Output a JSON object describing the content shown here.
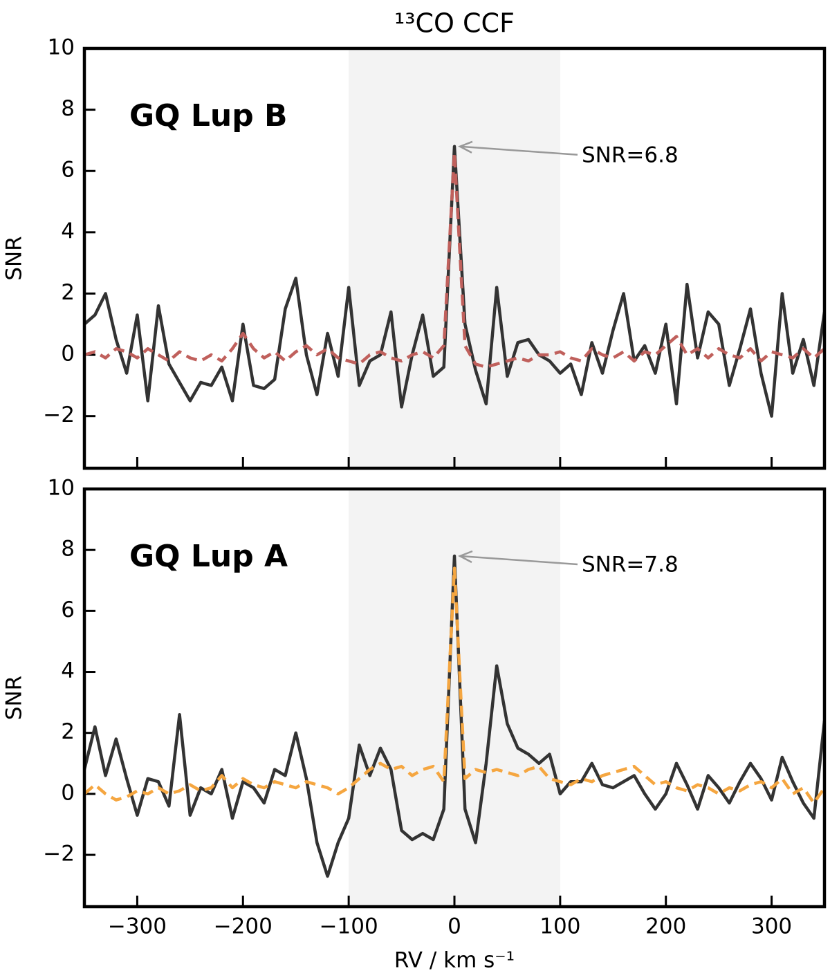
{
  "chart_data": [
    {
      "type": "line",
      "title": "¹³CO CCF",
      "label": "GQ Lup B",
      "annotation": "SNR=6.8",
      "ylabel": "SNR",
      "highlight_x": [
        -100,
        100
      ],
      "x": [
        -350,
        -340,
        -330,
        -320,
        -310,
        -300,
        -290,
        -280,
        -270,
        -260,
        -250,
        -240,
        -230,
        -220,
        -210,
        -200,
        -190,
        -180,
        -170,
        -160,
        -150,
        -140,
        -130,
        -120,
        -110,
        -100,
        -90,
        -80,
        -70,
        -60,
        -50,
        -40,
        -30,
        -20,
        -10,
        0,
        10,
        20,
        30,
        40,
        50,
        60,
        70,
        80,
        90,
        100,
        110,
        120,
        130,
        140,
        150,
        160,
        170,
        180,
        190,
        200,
        210,
        220,
        230,
        240,
        250,
        260,
        270,
        280,
        290,
        300,
        310,
        320,
        330,
        340,
        350
      ],
      "series": [
        {
          "color": "#333333",
          "style": "solid",
          "values": [
            1.0,
            1.3,
            2.0,
            0.5,
            -0.6,
            1.3,
            -1.5,
            1.6,
            -0.3,
            -0.9,
            -1.5,
            -0.9,
            -1.0,
            -0.4,
            -1.5,
            1.0,
            -1.0,
            -1.1,
            -0.8,
            1.5,
            2.5,
            0.0,
            -1.3,
            0.7,
            -0.7,
            2.2,
            -1.0,
            -0.2,
            0.0,
            1.4,
            -1.7,
            0.0,
            1.3,
            -0.7,
            -0.4,
            6.8,
            1.0,
            -0.5,
            -1.6,
            2.2,
            -0.7,
            0.4,
            0.5,
            0.0,
            -0.2,
            -0.6,
            -0.3,
            -1.3,
            0.4,
            -0.6,
            0.8,
            2.0,
            -0.2,
            0.3,
            -0.6,
            1.0,
            -1.6,
            2.3,
            -0.1,
            1.4,
            1.0,
            -1.0,
            0.2,
            1.5,
            -0.6,
            -2.0,
            2.0,
            -0.6,
            0.5,
            -1.0,
            1.4
          ]
        },
        {
          "color": "#c0605c",
          "style": "dashed",
          "values": [
            0.0,
            0.1,
            -0.1,
            0.2,
            0.1,
            -0.1,
            0.2,
            0.0,
            -0.2,
            0.1,
            -0.1,
            -0.2,
            0.0,
            -0.2,
            0.2,
            0.7,
            0.2,
            -0.1,
            0.1,
            -0.2,
            0.1,
            0.3,
            0.0,
            0.2,
            -0.1,
            -0.2,
            -0.3,
            0.0,
            0.1,
            -0.1,
            -0.2,
            0.0,
            0.1,
            -0.1,
            0.3,
            6.6,
            0.3,
            -0.3,
            -0.4,
            -0.3,
            -0.2,
            -0.1,
            -0.2,
            0.0,
            0.0,
            0.1,
            -0.1,
            -0.2,
            0.2,
            0.0,
            -0.1,
            0.1,
            -0.2,
            0.1,
            0.0,
            0.3,
            0.6,
            0.0,
            0.2,
            -0.1,
            0.2,
            0.0,
            -0.1,
            0.2,
            -0.2,
            0.1,
            0.0,
            -0.1,
            0.2,
            -0.1,
            0.2
          ]
        }
      ],
      "xlim": [
        -350,
        350
      ],
      "ylim": [
        -3.7,
        10
      ],
      "xticks": [
        {
          "value": -300,
          "label": "−300"
        },
        {
          "value": -200,
          "label": "−200"
        },
        {
          "value": -100,
          "label": "−100"
        },
        0,
        100,
        200,
        300
      ],
      "yticks": [
        {
          "value": -2,
          "label": "−2"
        },
        0,
        2,
        4,
        6,
        8,
        10
      ]
    },
    {
      "type": "line",
      "label": "GQ Lup A",
      "annotation": "SNR=7.8",
      "ylabel": "SNR",
      "xlabel": "RV / km s⁻¹",
      "highlight_x": [
        -100,
        100
      ],
      "x": [
        -350,
        -340,
        -330,
        -320,
        -310,
        -300,
        -290,
        -280,
        -270,
        -260,
        -250,
        -240,
        -230,
        -220,
        -210,
        -200,
        -190,
        -180,
        -170,
        -160,
        -150,
        -140,
        -130,
        -120,
        -110,
        -100,
        -90,
        -80,
        -70,
        -60,
        -50,
        -40,
        -30,
        -20,
        -10,
        0,
        10,
        20,
        30,
        40,
        50,
        60,
        70,
        80,
        90,
        100,
        110,
        120,
        130,
        140,
        150,
        160,
        170,
        180,
        190,
        200,
        210,
        220,
        230,
        240,
        250,
        260,
        270,
        280,
        290,
        300,
        310,
        320,
        330,
        340,
        350
      ],
      "series": [
        {
          "color": "#333333",
          "style": "solid",
          "values": [
            0.8,
            2.2,
            0.6,
            1.8,
            0.5,
            -0.7,
            0.5,
            0.4,
            -0.4,
            2.6,
            -0.7,
            0.2,
            0.0,
            0.8,
            -0.8,
            0.4,
            0.2,
            -0.3,
            0.8,
            0.6,
            2.0,
            0.5,
            -1.6,
            -2.7,
            -1.6,
            -0.8,
            1.6,
            0.6,
            1.5,
            0.8,
            -1.2,
            -1.5,
            -1.3,
            -1.5,
            -0.5,
            7.8,
            -0.5,
            -1.6,
            1.0,
            4.2,
            2.3,
            1.5,
            1.3,
            1.0,
            1.3,
            0.0,
            0.4,
            0.4,
            1.0,
            0.3,
            0.2,
            0.4,
            0.6,
            0.0,
            -0.5,
            0.0,
            1.0,
            0.3,
            -0.5,
            0.6,
            0.2,
            -0.3,
            0.4,
            1.0,
            0.5,
            -0.2,
            1.2,
            0.4,
            -0.3,
            -0.8,
            2.4
          ]
        },
        {
          "color": "#f5a640",
          "style": "dashed",
          "values": [
            0.0,
            0.3,
            0.0,
            -0.2,
            -0.1,
            0.1,
            0.0,
            0.2,
            0.0,
            0.1,
            0.3,
            0.1,
            0.2,
            0.6,
            0.2,
            0.5,
            0.3,
            0.2,
            0.4,
            0.3,
            0.2,
            0.4,
            0.3,
            0.2,
            0.0,
            0.2,
            0.5,
            0.8,
            1.0,
            0.8,
            0.9,
            0.6,
            0.8,
            0.9,
            0.4,
            7.4,
            0.5,
            0.8,
            0.7,
            0.8,
            0.7,
            0.6,
            0.8,
            0.9,
            0.5,
            0.4,
            0.3,
            0.5,
            0.4,
            0.6,
            0.7,
            0.8,
            0.9,
            0.6,
            0.3,
            0.4,
            0.2,
            0.1,
            0.3,
            0.2,
            0.0,
            0.2,
            0.1,
            0.3,
            0.4,
            0.2,
            0.5,
            0.0,
            0.2,
            -0.3,
            0.2
          ]
        }
      ],
      "xlim": [
        -350,
        350
      ],
      "ylim": [
        -3.7,
        10
      ],
      "xticks": [
        {
          "value": -300,
          "label": "−300"
        },
        {
          "value": -200,
          "label": "−200"
        },
        {
          "value": -100,
          "label": "−100"
        },
        0,
        100,
        200,
        300
      ],
      "yticks": [
        {
          "value": -2,
          "label": "−2"
        },
        0,
        2,
        4,
        6,
        8,
        10
      ]
    }
  ]
}
